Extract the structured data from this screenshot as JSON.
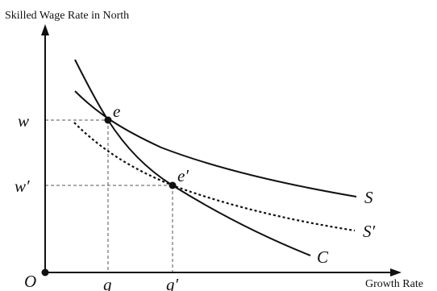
{
  "axes": {
    "y_title": "Skilled Wage Rate in North",
    "x_title": "Growth Rate",
    "origin": "O"
  },
  "ticks": {
    "w": "w",
    "w_prime": "w′",
    "g": "g",
    "g_prime": "g′"
  },
  "points": {
    "e": "e",
    "e_prime": "e′"
  },
  "curves": {
    "S": "S",
    "S_prime": "S′",
    "C": "C"
  }
}
